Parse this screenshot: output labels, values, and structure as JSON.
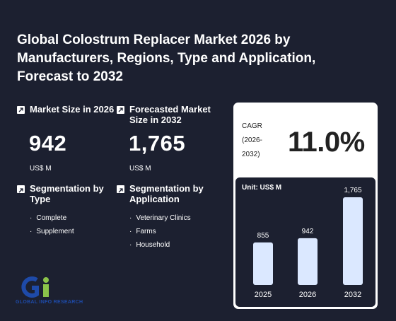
{
  "title": "Global Colostrum Replacer Market 2026 by Manufacturers, Regions, Type and Application, Forecast to 2032",
  "market_size": {
    "label": "Market Size in 2026",
    "value": "942",
    "unit": "US$ M"
  },
  "forecast_size": {
    "label": "Forecasted Market Size in 2032",
    "value": "1,765",
    "unit": "US$ M"
  },
  "segmentation_type": {
    "label": "Segmentation by Type",
    "items": [
      "Complete",
      "Supplement"
    ]
  },
  "segmentation_application": {
    "label": "Segmentation by Application",
    "items": [
      "Veterinary Clinics",
      "Farms",
      "Household"
    ]
  },
  "cagr": {
    "label": "CAGR (2026-2032)",
    "value": "11.0%"
  },
  "logo": {
    "text": "GLOBAL INFO RESEARCH",
    "mark": "Gi"
  },
  "colors": {
    "background": "#1c2030",
    "bar": "#dbe8ff",
    "logo_blue": "#1e4aa8",
    "logo_green": "#8bc34a"
  },
  "chart_data": {
    "type": "bar",
    "title": "",
    "unit_label": "Unit: US$ M",
    "categories": [
      "2025",
      "2026",
      "2032"
    ],
    "values": [
      855,
      942,
      1765
    ],
    "value_labels": [
      "855",
      "942",
      "1,765"
    ]
  }
}
